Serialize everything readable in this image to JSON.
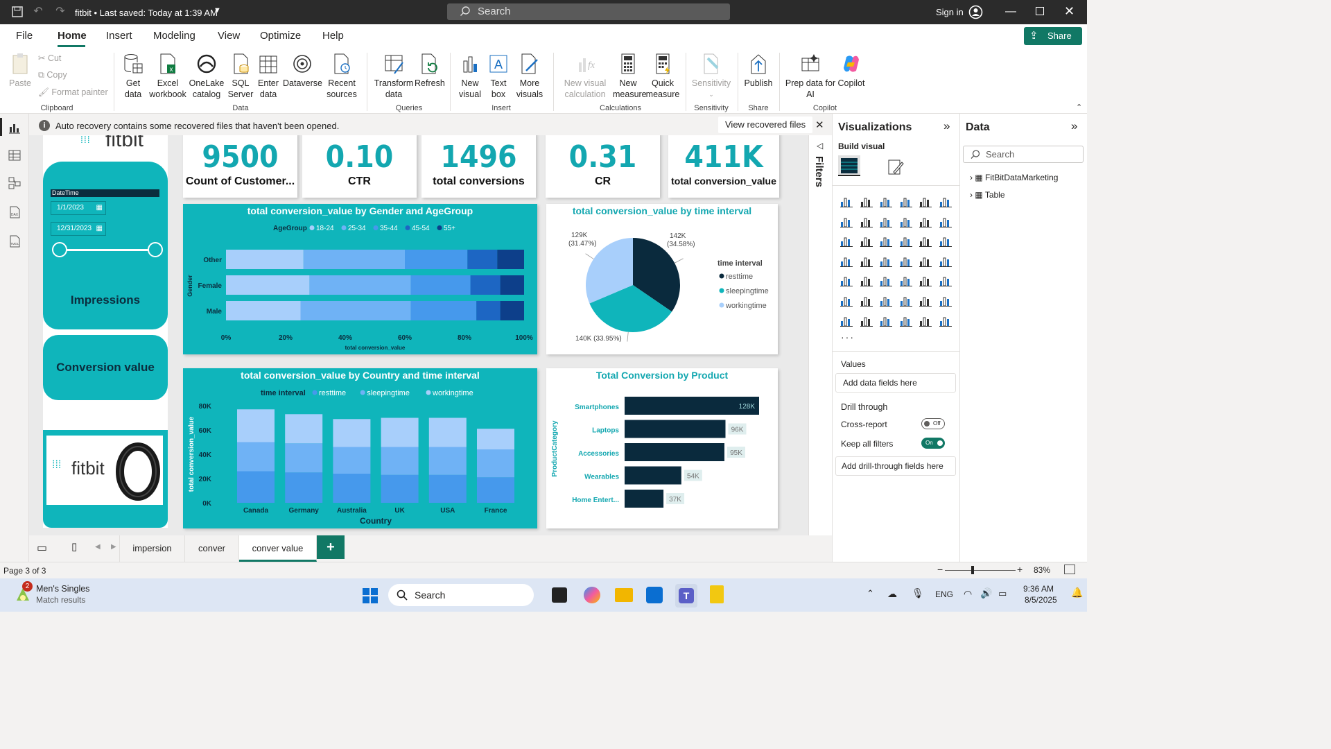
{
  "titlebar": {
    "title": "fitbit • Last saved: Today at 1:39 AM",
    "search_placeholder": "Search",
    "sign_in": "Sign in"
  },
  "menu": {
    "items": [
      "File",
      "Home",
      "Insert",
      "Modeling",
      "View",
      "Optimize",
      "Help"
    ],
    "active": "Home",
    "share": "Share"
  },
  "ribbon": {
    "clipboard": {
      "paste": "Paste",
      "cut": "Cut",
      "copy": "Copy",
      "format_painter": "Format painter",
      "group": "Clipboard"
    },
    "data": {
      "get_data": "Get data",
      "excel": "Excel workbook",
      "onelake": "OneLake catalog",
      "sql": "SQL Server",
      "enter": "Enter data",
      "dataverse": "Dataverse",
      "recent": "Recent sources",
      "group": "Data"
    },
    "queries": {
      "transform": "Transform data",
      "refresh": "Refresh",
      "group": "Queries"
    },
    "insert": {
      "new_visual": "New visual",
      "text_box": "Text box",
      "more_visuals": "More visuals",
      "group": "Insert"
    },
    "calculations": {
      "new_visual_calc": "New visual calculation",
      "new_measure": "New measure",
      "quick_measure": "Quick measure",
      "group": "Calculations"
    },
    "sensitivity": {
      "sensitivity": "Sensitivity",
      "group": "Sensitivity"
    },
    "share": {
      "publish": "Publish",
      "group": "Share"
    },
    "copilot": {
      "prep": "Prep data for AI",
      "copilot": "Copilot",
      "group": "Copilot"
    }
  },
  "notice": {
    "text": "Auto recovery contains some recovered files that haven't been opened.",
    "action": "View recovered files"
  },
  "slicer": {
    "logo": "fitbit",
    "header": "DateTime",
    "start": "1/1/2023",
    "end": "12/31/2023",
    "slider_start": 0,
    "slider_end": 1
  },
  "nav_buttons": {
    "impressions": "Impressions",
    "conversion": "Conversion value"
  },
  "bottom_logo": "fitbit",
  "kpis": [
    {
      "value": "9500",
      "label": "Count of Customer..."
    },
    {
      "value": "0.10",
      "label": "CTR"
    },
    {
      "value": "1496",
      "label": "total conversions"
    },
    {
      "value": "0.31",
      "label": "CR"
    },
    {
      "value": "411K",
      "label": "total conversion_value"
    }
  ],
  "chart_data": [
    {
      "type": "bar",
      "orientation": "horizontal",
      "stacked": "100%",
      "title": "total conversion_value by Gender and AgeGroup",
      "legend_title": "AgeGroup",
      "legend_position": "top",
      "ylabel": "Gender",
      "xlabel": "total conversion_value",
      "categories": [
        "Other",
        "Female",
        "Male"
      ],
      "x_ticks": [
        "0%",
        "20%",
        "40%",
        "60%",
        "80%",
        "100%"
      ],
      "series": [
        {
          "name": "18-24",
          "color": "#a8cffb",
          "values": [
            26,
            28,
            25
          ]
        },
        {
          "name": "25-34",
          "color": "#6fb2f5",
          "values": [
            34,
            34,
            37
          ]
        },
        {
          "name": "35-44",
          "color": "#4699ec",
          "values": [
            21,
            20,
            22
          ]
        },
        {
          "name": "45-54",
          "color": "#1d66c3",
          "values": [
            10,
            10,
            8
          ]
        },
        {
          "name": "55+",
          "color": "#0d3f8a",
          "values": [
            9,
            8,
            8
          ]
        }
      ]
    },
    {
      "type": "pie",
      "title": "total conversion_value by time interval",
      "legend_title": "time interval",
      "legend_position": "right",
      "slices": [
        {
          "name": "resttime",
          "value": 142,
          "label": "142K",
          "pct": "(34.58%)",
          "color": "#0a2a3d"
        },
        {
          "name": "sleepingtime",
          "value": 140,
          "label": "140K (33.95%)",
          "pct": "",
          "color": "#0fb5bb"
        },
        {
          "name": "workingtime",
          "value": 129,
          "label": "129K",
          "pct": "(31.47%)",
          "color": "#a8cffb"
        }
      ]
    },
    {
      "type": "bar",
      "orientation": "vertical",
      "stacked": true,
      "title": "total conversion_value by Country and time interval",
      "legend_title": "time interval",
      "legend_position": "top",
      "xlabel": "Country",
      "ylabel": "total conversion_value",
      "categories": [
        "Canada",
        "Germany",
        "Australia",
        "UK",
        "USA",
        "France"
      ],
      "y_ticks": [
        "0K",
        "20K",
        "40K",
        "60K",
        "80K"
      ],
      "ylim": [
        0,
        80
      ],
      "series": [
        {
          "name": "resttime",
          "color": "#4699ec",
          "values": [
            26,
            25,
            24,
            23,
            23,
            21
          ]
        },
        {
          "name": "sleepingtime",
          "color": "#6fb2f5",
          "values": [
            24,
            24,
            22,
            23,
            23,
            23
          ]
        },
        {
          "name": "workingtime",
          "color": "#a8cffb",
          "values": [
            27,
            24,
            23,
            24,
            24,
            17
          ]
        }
      ]
    },
    {
      "type": "bar",
      "orientation": "horizontal",
      "title": "Total Conversion by Product",
      "ylabel": "ProductCategory",
      "categories": [
        "Smartphones",
        "Laptops",
        "Accessories",
        "Wearables",
        "Home Entert..."
      ],
      "values": [
        128,
        96,
        95,
        54,
        37
      ],
      "labels": [
        "128K",
        "96K",
        "95K",
        "54K",
        "37K"
      ],
      "color": "#0a2a3d"
    }
  ],
  "filters": {
    "label": "Filters"
  },
  "viz": {
    "title": "Visualizations",
    "build": "Build visual",
    "values": "Values",
    "add_fields": "Add data fields here",
    "drill": "Drill through",
    "cross_report": "Cross-report",
    "cross_state": "Off",
    "keep_filters": "Keep all filters",
    "keep_state": "On",
    "add_drill": "Add drill-through fields here"
  },
  "data_pane": {
    "title": "Data",
    "search": "Search",
    "tables": [
      "FitBitDataMarketing",
      "Table"
    ]
  },
  "tabs": [
    "impersion",
    "conver",
    "conver value"
  ],
  "active_tab": "conver value",
  "status": {
    "page": "Page 3 of 3",
    "zoom": "83%"
  },
  "taskbar": {
    "badge": "2",
    "news_title": "Men's Singles",
    "news_sub": "Match results",
    "search": "Search",
    "lang": "ENG",
    "time": "9:36 AM",
    "date": "8/5/2025"
  }
}
